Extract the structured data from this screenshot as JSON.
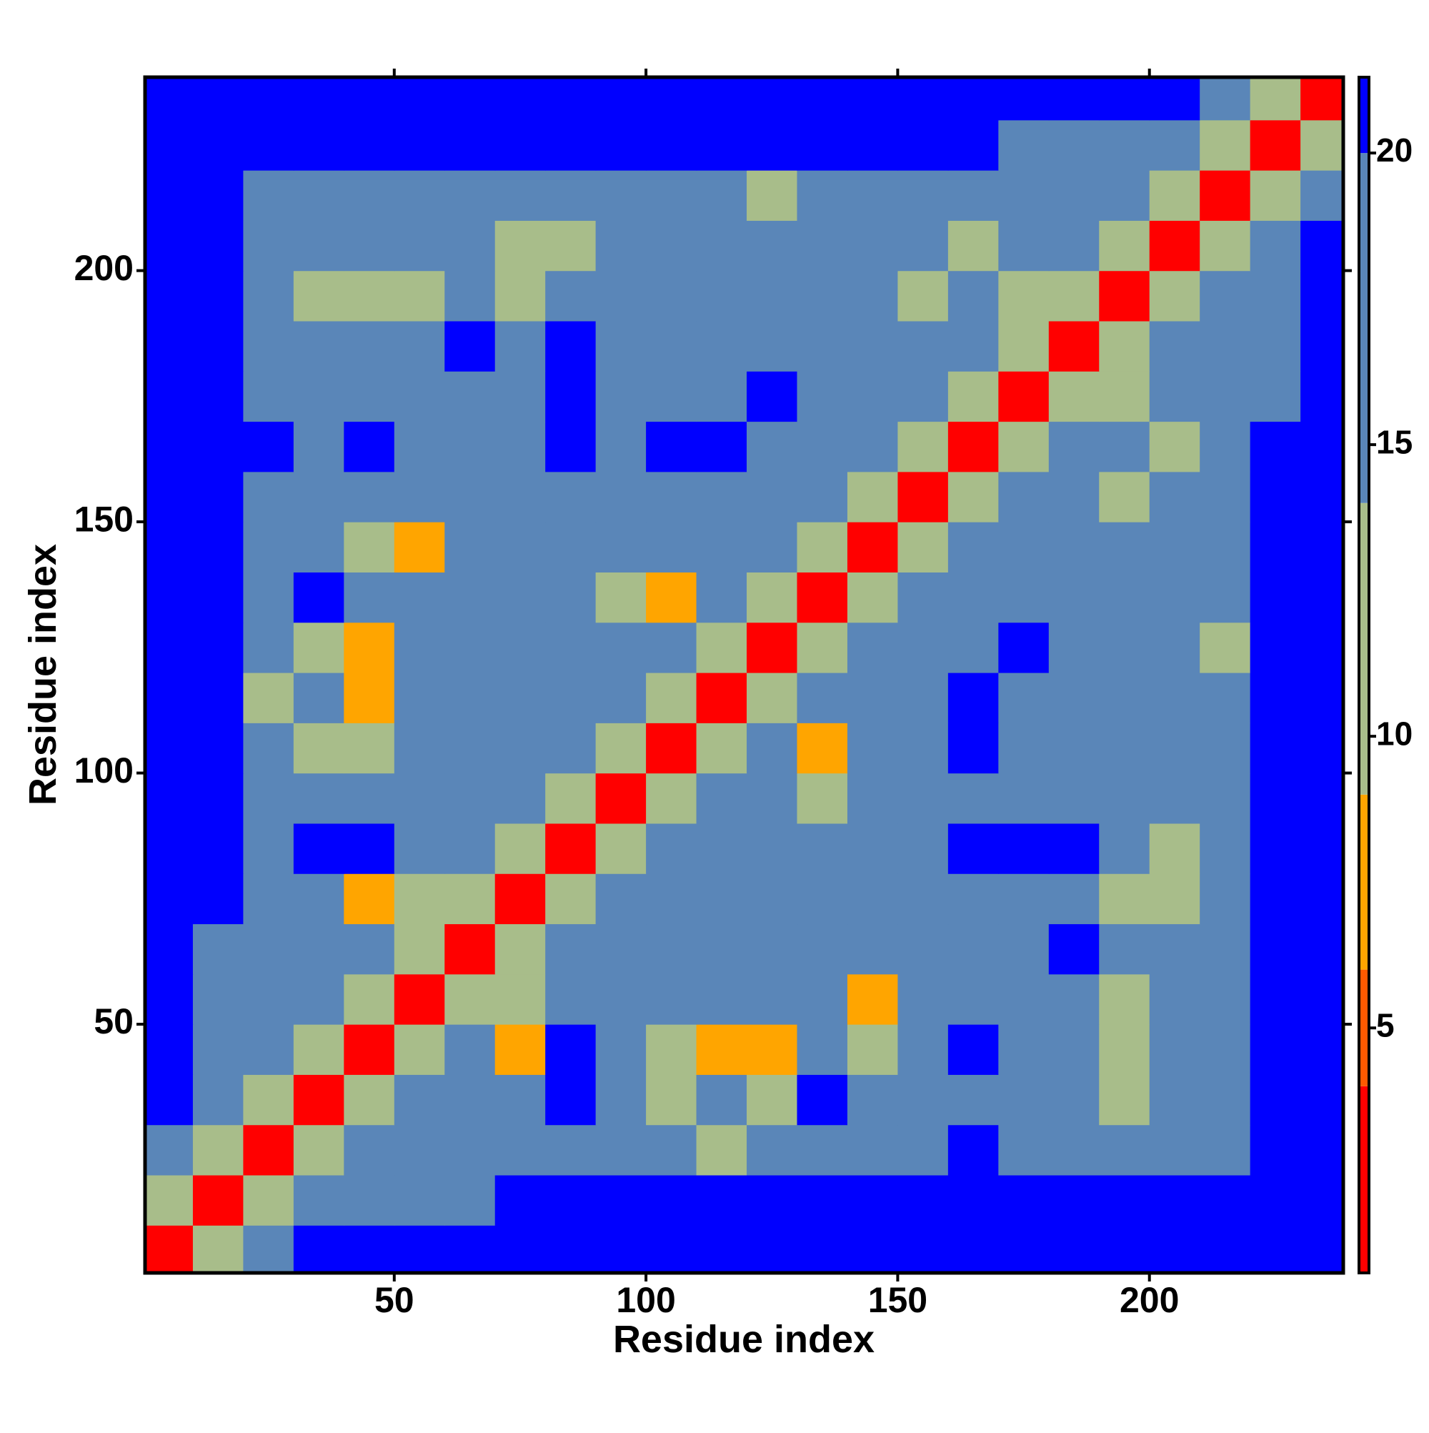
{
  "chart_data": {
    "type": "heatmap",
    "xlabel": "Residue index",
    "ylabel": "Residue index",
    "x": [
      5,
      15,
      25,
      35,
      45,
      55,
      65,
      75,
      85,
      95,
      105,
      115,
      125,
      135,
      145,
      155,
      165,
      175,
      185,
      195,
      205,
      215,
      225,
      235
    ],
    "y": [
      5,
      15,
      25,
      35,
      45,
      55,
      65,
      75,
      85,
      95,
      105,
      115,
      125,
      135,
      145,
      155,
      165,
      175,
      185,
      195,
      205,
      215,
      225,
      235
    ],
    "xlim": [
      0.5,
      238.5
    ],
    "ylim": [
      0.5,
      238.5
    ],
    "xticks": [
      50,
      100,
      150,
      200
    ],
    "yticks": [
      50,
      100,
      150,
      200
    ],
    "z": [
      [
        3,
        10,
        15,
        22,
        22,
        22,
        22,
        22,
        22,
        22,
        22,
        22,
        22,
        22,
        22,
        22,
        22,
        22,
        22,
        22,
        22,
        22,
        22,
        22
      ],
      [
        10,
        3,
        10,
        15,
        17,
        17,
        17,
        21,
        21,
        21,
        21,
        21,
        21,
        21,
        21,
        21,
        21,
        21,
        21,
        21,
        21,
        21,
        21,
        22
      ],
      [
        15,
        10,
        3,
        10,
        15,
        17,
        17,
        17,
        17,
        17,
        17,
        12,
        17,
        17,
        17,
        17,
        21,
        17,
        17,
        17,
        17,
        17,
        21,
        22
      ],
      [
        22,
        15,
        10,
        3,
        10,
        15,
        17,
        17,
        21,
        17,
        11,
        17,
        12,
        21,
        17,
        17,
        17,
        17,
        17,
        12,
        17,
        17,
        21,
        22
      ],
      [
        22,
        17,
        15,
        10,
        3,
        10,
        15,
        8,
        21,
        17,
        12,
        8,
        8,
        17,
        12,
        17,
        21,
        17,
        17,
        12,
        17,
        17,
        21,
        22
      ],
      [
        22,
        17,
        17,
        15,
        10,
        3,
        10,
        12,
        17,
        17,
        17,
        17,
        17,
        17,
        7,
        17,
        17,
        17,
        17,
        11,
        17,
        17,
        21,
        22
      ],
      [
        22,
        17,
        17,
        17,
        15,
        10,
        3,
        10,
        15,
        17,
        17,
        17,
        17,
        17,
        17,
        17,
        17,
        17,
        21,
        17,
        17,
        17,
        21,
        22
      ],
      [
        22,
        21,
        17,
        17,
        8,
        12,
        10,
        3,
        10,
        15,
        17,
        17,
        17,
        17,
        17,
        17,
        17,
        17,
        17,
        11,
        9,
        17,
        21,
        22
      ],
      [
        22,
        21,
        17,
        21,
        21,
        17,
        15,
        10,
        3,
        10,
        15,
        17,
        17,
        17,
        17,
        17,
        21,
        21,
        21,
        17,
        12,
        17,
        21,
        22
      ],
      [
        22,
        21,
        17,
        17,
        17,
        17,
        17,
        15,
        10,
        3,
        10,
        15,
        17,
        9,
        17,
        17,
        17,
        17,
        17,
        17,
        17,
        17,
        21,
        22
      ],
      [
        22,
        21,
        17,
        11,
        12,
        17,
        17,
        17,
        15,
        10,
        3,
        10,
        15,
        8,
        17,
        17,
        21,
        17,
        17,
        17,
        17,
        17,
        21,
        22
      ],
      [
        22,
        21,
        12,
        17,
        8,
        17,
        17,
        17,
        17,
        15,
        10,
        3,
        10,
        15,
        17,
        17,
        21,
        17,
        17,
        17,
        17,
        17,
        21,
        22
      ],
      [
        22,
        21,
        17,
        12,
        8,
        17,
        17,
        17,
        17,
        17,
        15,
        10,
        3,
        10,
        15,
        17,
        17,
        21,
        17,
        17,
        17,
        12,
        21,
        22
      ],
      [
        22,
        21,
        17,
        21,
        17,
        17,
        17,
        17,
        17,
        9,
        8,
        15,
        10,
        3,
        10,
        15,
        17,
        17,
        17,
        17,
        17,
        17,
        21,
        22
      ],
      [
        22,
        21,
        17,
        17,
        12,
        7,
        17,
        17,
        17,
        17,
        17,
        17,
        15,
        10,
        3,
        10,
        15,
        17,
        17,
        17,
        17,
        17,
        21,
        22
      ],
      [
        22,
        21,
        17,
        17,
        17,
        17,
        17,
        17,
        17,
        17,
        17,
        17,
        17,
        15,
        10,
        3,
        10,
        15,
        17,
        11,
        17,
        17,
        21,
        22
      ],
      [
        22,
        21,
        21,
        17,
        21,
        17,
        17,
        17,
        21,
        17,
        21,
        21,
        17,
        17,
        15,
        10,
        3,
        10,
        15,
        17,
        11,
        17,
        21,
        22
      ],
      [
        22,
        21,
        17,
        17,
        17,
        17,
        17,
        17,
        21,
        17,
        17,
        17,
        21,
        17,
        17,
        15,
        10,
        3,
        10,
        12,
        17,
        17,
        17,
        22
      ],
      [
        22,
        21,
        17,
        17,
        17,
        17,
        21,
        17,
        21,
        17,
        17,
        17,
        17,
        17,
        17,
        17,
        15,
        10,
        3,
        10,
        15,
        17,
        17,
        22
      ],
      [
        22,
        21,
        17,
        12,
        12,
        11,
        17,
        11,
        17,
        17,
        17,
        17,
        17,
        17,
        17,
        11,
        17,
        12,
        10,
        3,
        10,
        15,
        17,
        22
      ],
      [
        22,
        21,
        17,
        17,
        17,
        17,
        17,
        9,
        12,
        17,
        17,
        17,
        17,
        17,
        17,
        17,
        11,
        17,
        15,
        10,
        3,
        10,
        15,
        22
      ],
      [
        22,
        21,
        17,
        17,
        17,
        17,
        17,
        17,
        17,
        17,
        17,
        17,
        12,
        17,
        17,
        17,
        17,
        17,
        17,
        15,
        10,
        3,
        10,
        15
      ],
      [
        22,
        21,
        21,
        21,
        21,
        21,
        21,
        21,
        21,
        21,
        21,
        21,
        21,
        21,
        21,
        21,
        21,
        17,
        17,
        17,
        15,
        10,
        3,
        10
      ],
      [
        22,
        22,
        22,
        22,
        22,
        22,
        22,
        22,
        22,
        22,
        22,
        22,
        22,
        22,
        22,
        22,
        22,
        22,
        22,
        22,
        22,
        15,
        10,
        3
      ]
    ],
    "colorbar": {
      "lim": [
        0.8,
        21.3
      ],
      "ticks": [
        5,
        10,
        15,
        20
      ],
      "breaks": [
        0.8,
        4,
        6,
        9,
        14,
        20,
        21.3
      ],
      "colors": [
        "#ff0000",
        "#ff5a00",
        "#ffa500",
        "#a8bd8a",
        "#5a86b8",
        "#0000ff"
      ]
    }
  }
}
